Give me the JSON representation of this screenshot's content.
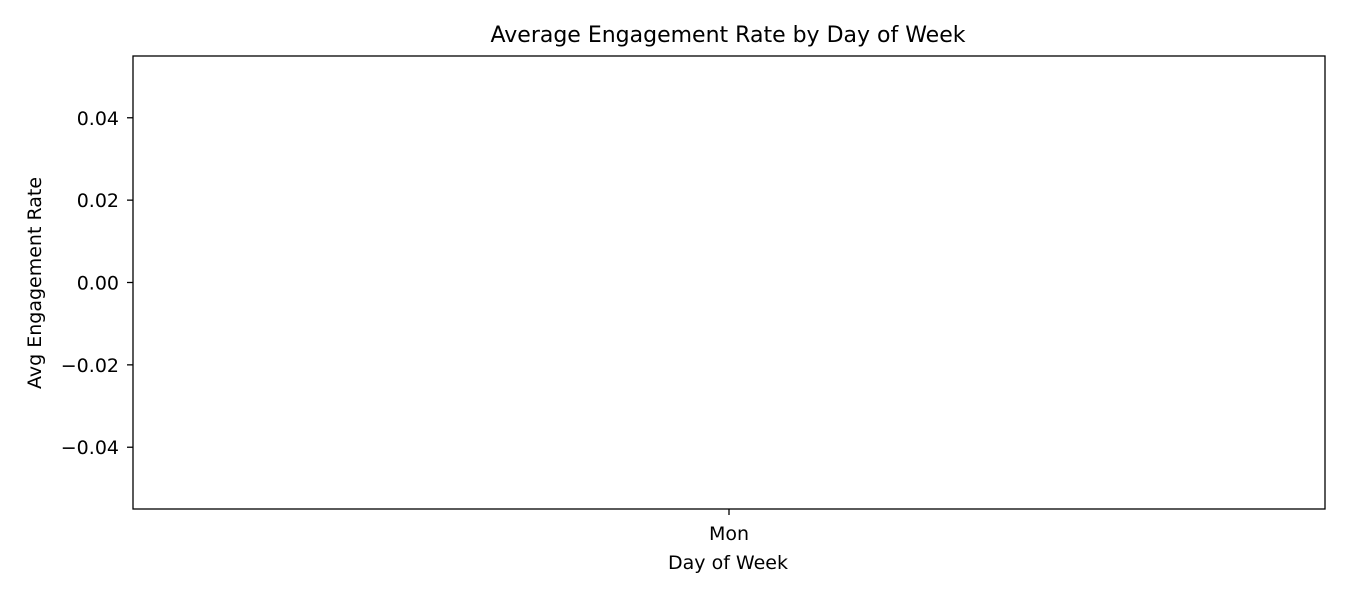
{
  "chart_data": {
    "type": "bar",
    "title": "Average Engagement Rate by Day of Week",
    "xlabel": "Day of Week",
    "ylabel": "Avg Engagement Rate",
    "categories": [
      "Mon"
    ],
    "values": [
      0.0
    ],
    "ylim": [
      -0.055,
      0.055
    ],
    "yticks": [
      0.04,
      0.02,
      0.0,
      -0.02,
      -0.04
    ],
    "ytick_labels": [
      "0.04",
      "0.02",
      "0.00",
      "−0.02",
      "−0.04"
    ],
    "grid": false,
    "legend": "none"
  }
}
